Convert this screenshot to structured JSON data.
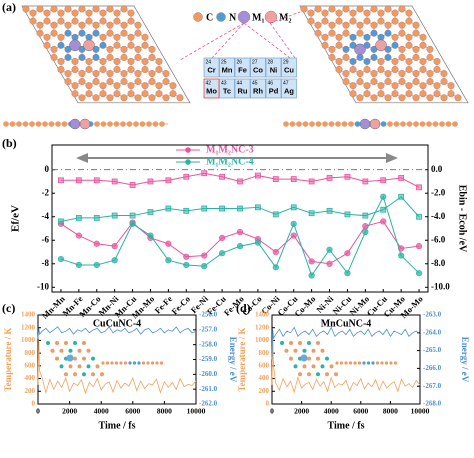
{
  "panel_a": {
    "label": "(a)",
    "legend": [
      "C",
      "N",
      "M₁",
      "M₂"
    ],
    "periodic_table": [
      [
        {
          "number": 24,
          "symbol": "Cr"
        },
        {
          "number": 25,
          "symbol": "Mn"
        },
        {
          "number": 26,
          "symbol": "Fe"
        },
        {
          "number": 27,
          "symbol": "Co"
        },
        {
          "number": 28,
          "symbol": "Ni"
        },
        {
          "number": 29,
          "symbol": "Cu"
        }
      ],
      [
        {
          "number": 42,
          "symbol": "Mo"
        },
        {
          "number": 43,
          "symbol": "Tc"
        },
        {
          "number": 44,
          "symbol": "Ru"
        },
        {
          "number": 45,
          "symbol": "Rh"
        },
        {
          "number": 46,
          "symbol": "Pd"
        },
        {
          "number": 47,
          "symbol": "Ag"
        }
      ]
    ]
  },
  "chart_data": [
    {
      "type": "line",
      "panel_label": "(b)",
      "y_label": "Ef/eV",
      "y2_label": "Ebin - Ecoh /eV",
      "categories": [
        "Mn-Mn",
        "Mn-Fe",
        "Mn-Co",
        "Mn-Ni",
        "Mn-Cu",
        "Mn-Mo",
        "Fe-Fe",
        "Fe-Co",
        "Fe-Ni",
        "Fe-Cu",
        "Fe-Mo",
        "Co-Co",
        "Co-Ni",
        "Co-Cu",
        "Co-Mo",
        "Ni-Ni",
        "Ni-Cu",
        "Ni-Mo",
        "Cu-Cu",
        "Cu-Mo",
        "Mo-Mo"
      ],
      "ylim": [
        -10.4,
        2.1
      ],
      "yticks": [
        0,
        -2,
        -4,
        -6,
        -8,
        -10
      ],
      "y2lim": [
        -10.4,
        2.1
      ],
      "y2ticks": [
        {
          "value": 0,
          "label": "0.0"
        },
        {
          "value": -2,
          "label": "-2.0"
        },
        {
          "value": -4,
          "label": "-4.0"
        },
        {
          "value": -6,
          "label": "-6.0"
        },
        {
          "value": -8,
          "label": "-8.0"
        },
        {
          "value": -10,
          "label": "-10.0"
        }
      ],
      "series": [
        {
          "name": "M₁M₂NC-3",
          "color": "#e8559f",
          "marker": "circle",
          "values": [
            -4.6,
            -5.6,
            -6.3,
            -6.5,
            -4.5,
            -5.8,
            -6.3,
            -7.4,
            -7.3,
            -5.8,
            -5.3,
            -5.9,
            -7.0,
            -5.6,
            -7.8,
            -8.0,
            -7.1,
            -4.8,
            -4.4,
            -6.7,
            -6.5
          ]
        },
        {
          "name": "M₁M₂NC-4",
          "color": "#2bb3a6",
          "marker": "circle",
          "values": [
            -7.6,
            -8.1,
            -8.1,
            -7.7,
            -4.6,
            -5.6,
            -7.7,
            -8.1,
            -8.2,
            -7.1,
            -6.5,
            -6.2,
            -8.3,
            -4.6,
            -9.0,
            -6.8,
            -8.8,
            -5.3,
            -2.3,
            -7.3,
            -8.8
          ]
        },
        {
          "color": "#e8559f",
          "marker": "square",
          "axis": "y2",
          "values": [
            -0.9,
            -0.9,
            -0.9,
            -1.0,
            -1.3,
            -1.0,
            -0.9,
            -0.6,
            -0.3,
            -0.6,
            -1.0,
            -0.5,
            -0.8,
            -0.8,
            -1.0,
            -0.7,
            -0.6,
            -1.0,
            -0.9,
            -0.7,
            -1.5
          ]
        },
        {
          "color": "#2bb3a6",
          "marker": "square",
          "axis": "y2",
          "values": [
            -4.4,
            -4.1,
            -4.1,
            -3.9,
            -3.9,
            -3.6,
            -3.3,
            -3.5,
            -3.3,
            -3.3,
            -3.3,
            -3.2,
            -3.8,
            -3.2,
            -3.7,
            -3.5,
            -3.8,
            -3.9,
            -3.4,
            -2.3,
            -4.0
          ]
        }
      ]
    },
    {
      "type": "line",
      "panel_label": "(c)",
      "title": "CuCuNC-4",
      "x_label": "Time / fs",
      "y_label": "Temperature / K",
      "y2_label": "Energy / eV",
      "x": [
        0,
        50,
        100,
        250,
        500,
        750,
        1000,
        1250,
        1500,
        1750,
        2000,
        2250,
        2500,
        2750,
        3000,
        3250,
        3500,
        3750,
        4000,
        4250,
        4500,
        4750,
        5000,
        5250,
        5500,
        5750,
        6000,
        6250,
        6500,
        6750,
        7000,
        7250,
        7500,
        7750,
        8000,
        8250,
        8500,
        8750,
        9000,
        9250,
        9500,
        9750,
        10000
      ],
      "xlim": [
        0,
        10000
      ],
      "xticks": [
        0,
        2000,
        4000,
        6000,
        8000,
        10000
      ],
      "ylim": [
        0,
        1400
      ],
      "yticks": [
        0,
        200,
        400,
        600,
        800,
        1000,
        1200,
        1400
      ],
      "y2lim": [
        -262.0,
        -256.0
      ],
      "y2ticks": [
        {
          "value": -256,
          "label": "-256.0"
        },
        {
          "value": -257,
          "label": "-257.0"
        },
        {
          "value": -258,
          "label": "-258.0"
        },
        {
          "value": -259,
          "label": "-259.0"
        },
        {
          "value": -260,
          "label": "-260.0"
        },
        {
          "value": -261,
          "label": "-261.0"
        },
        {
          "value": -262,
          "label": "-262.0"
        }
      ],
      "series": [
        {
          "color": "#f2a25e",
          "values": [
            300,
            1020,
            520,
            420,
            180,
            390,
            230,
            360,
            260,
            410,
            200,
            330,
            290,
            380,
            170,
            340,
            270,
            400,
            220,
            310,
            350,
            190,
            370,
            250,
            330,
            280,
            410,
            210,
            360,
            240,
            320,
            300,
            390,
            180,
            350,
            260,
            340,
            230,
            400,
            270,
            310,
            290,
            360
          ]
        },
        {
          "color": "#4b8fd1",
          "axis": "y2",
          "values": [
            -257.6,
            -256.9,
            -257.3,
            -257.1,
            -256.9,
            -257.2,
            -257.0,
            -256.8,
            -257.2,
            -257.1,
            -256.9,
            -257.3,
            -257.0,
            -257.1,
            -256.9,
            -257.2,
            -257.0,
            -256.9,
            -257.2,
            -257.1,
            -256.8,
            -257.2,
            -257.0,
            -257.1,
            -256.9,
            -257.2,
            -257.1,
            -256.9,
            -257.3,
            -257.0,
            -256.9,
            -257.2,
            -257.1,
            -256.9,
            -257.2,
            -257.0,
            -257.1,
            -256.8,
            -257.2,
            -257.0,
            -256.9,
            -257.2,
            -257.1
          ]
        }
      ]
    },
    {
      "type": "line",
      "panel_label": "(d)",
      "title": "MnCuNC-4",
      "x_label": "Time / fs",
      "y_label": "Temperature / K",
      "y2_label": "Energy / eV",
      "x": [
        0,
        50,
        100,
        250,
        500,
        750,
        1000,
        1250,
        1500,
        1750,
        2000,
        2250,
        2500,
        2750,
        3000,
        3250,
        3500,
        3750,
        4000,
        4250,
        4500,
        4750,
        5000,
        5250,
        5500,
        5750,
        6000,
        6250,
        6500,
        6750,
        7000,
        7250,
        7500,
        7750,
        8000,
        8250,
        8500,
        8750,
        9000,
        9250,
        9500,
        9750,
        10000
      ],
      "xlim": [
        0,
        10000
      ],
      "xticks": [
        0,
        2000,
        4000,
        6000,
        8000,
        10000
      ],
      "ylim": [
        0,
        1400
      ],
      "yticks": [
        0,
        200,
        400,
        600,
        800,
        1000,
        1200,
        1400
      ],
      "y2lim": [
        -268.0,
        -263.0
      ],
      "y2ticks": [
        {
          "value": -263,
          "label": "-263.0"
        },
        {
          "value": -264,
          "label": "-264.0"
        },
        {
          "value": -265,
          "label": "-265.0"
        },
        {
          "value": -266,
          "label": "-266.0"
        },
        {
          "value": -267,
          "label": "-267.0"
        },
        {
          "value": -268,
          "label": "-268.0"
        }
      ],
      "series": [
        {
          "color": "#f2a25e",
          "values": [
            300,
            1100,
            600,
            330,
            220,
            400,
            270,
            360,
            190,
            420,
            250,
            310,
            340,
            230,
            390,
            280,
            350,
            200,
            410,
            260,
            320,
            300,
            370,
            210,
            340,
            290,
            400,
            240,
            330,
            270,
            380,
            220,
            360,
            250,
            310,
            350,
            200,
            390,
            280,
            320,
            260,
            370,
            300
          ]
        },
        {
          "color": "#4b8fd1",
          "axis": "y2",
          "values": [
            -265.5,
            -263.8,
            -264.3,
            -264.1,
            -263.8,
            -264.2,
            -263.9,
            -264.0,
            -263.7,
            -264.2,
            -264.0,
            -263.9,
            -264.1,
            -263.8,
            -264.2,
            -264.0,
            -263.9,
            -264.1,
            -263.7,
            -264.2,
            -264.0,
            -263.9,
            -264.1,
            -263.8,
            -264.2,
            -264.0,
            -263.9,
            -264.1,
            -263.8,
            -264.2,
            -264.0,
            -263.9,
            -264.1,
            -263.8,
            -264.2,
            -263.9,
            -264.0,
            -264.1,
            -263.8,
            -264.2,
            -264.0,
            -263.9,
            -264.1
          ]
        }
      ]
    }
  ]
}
